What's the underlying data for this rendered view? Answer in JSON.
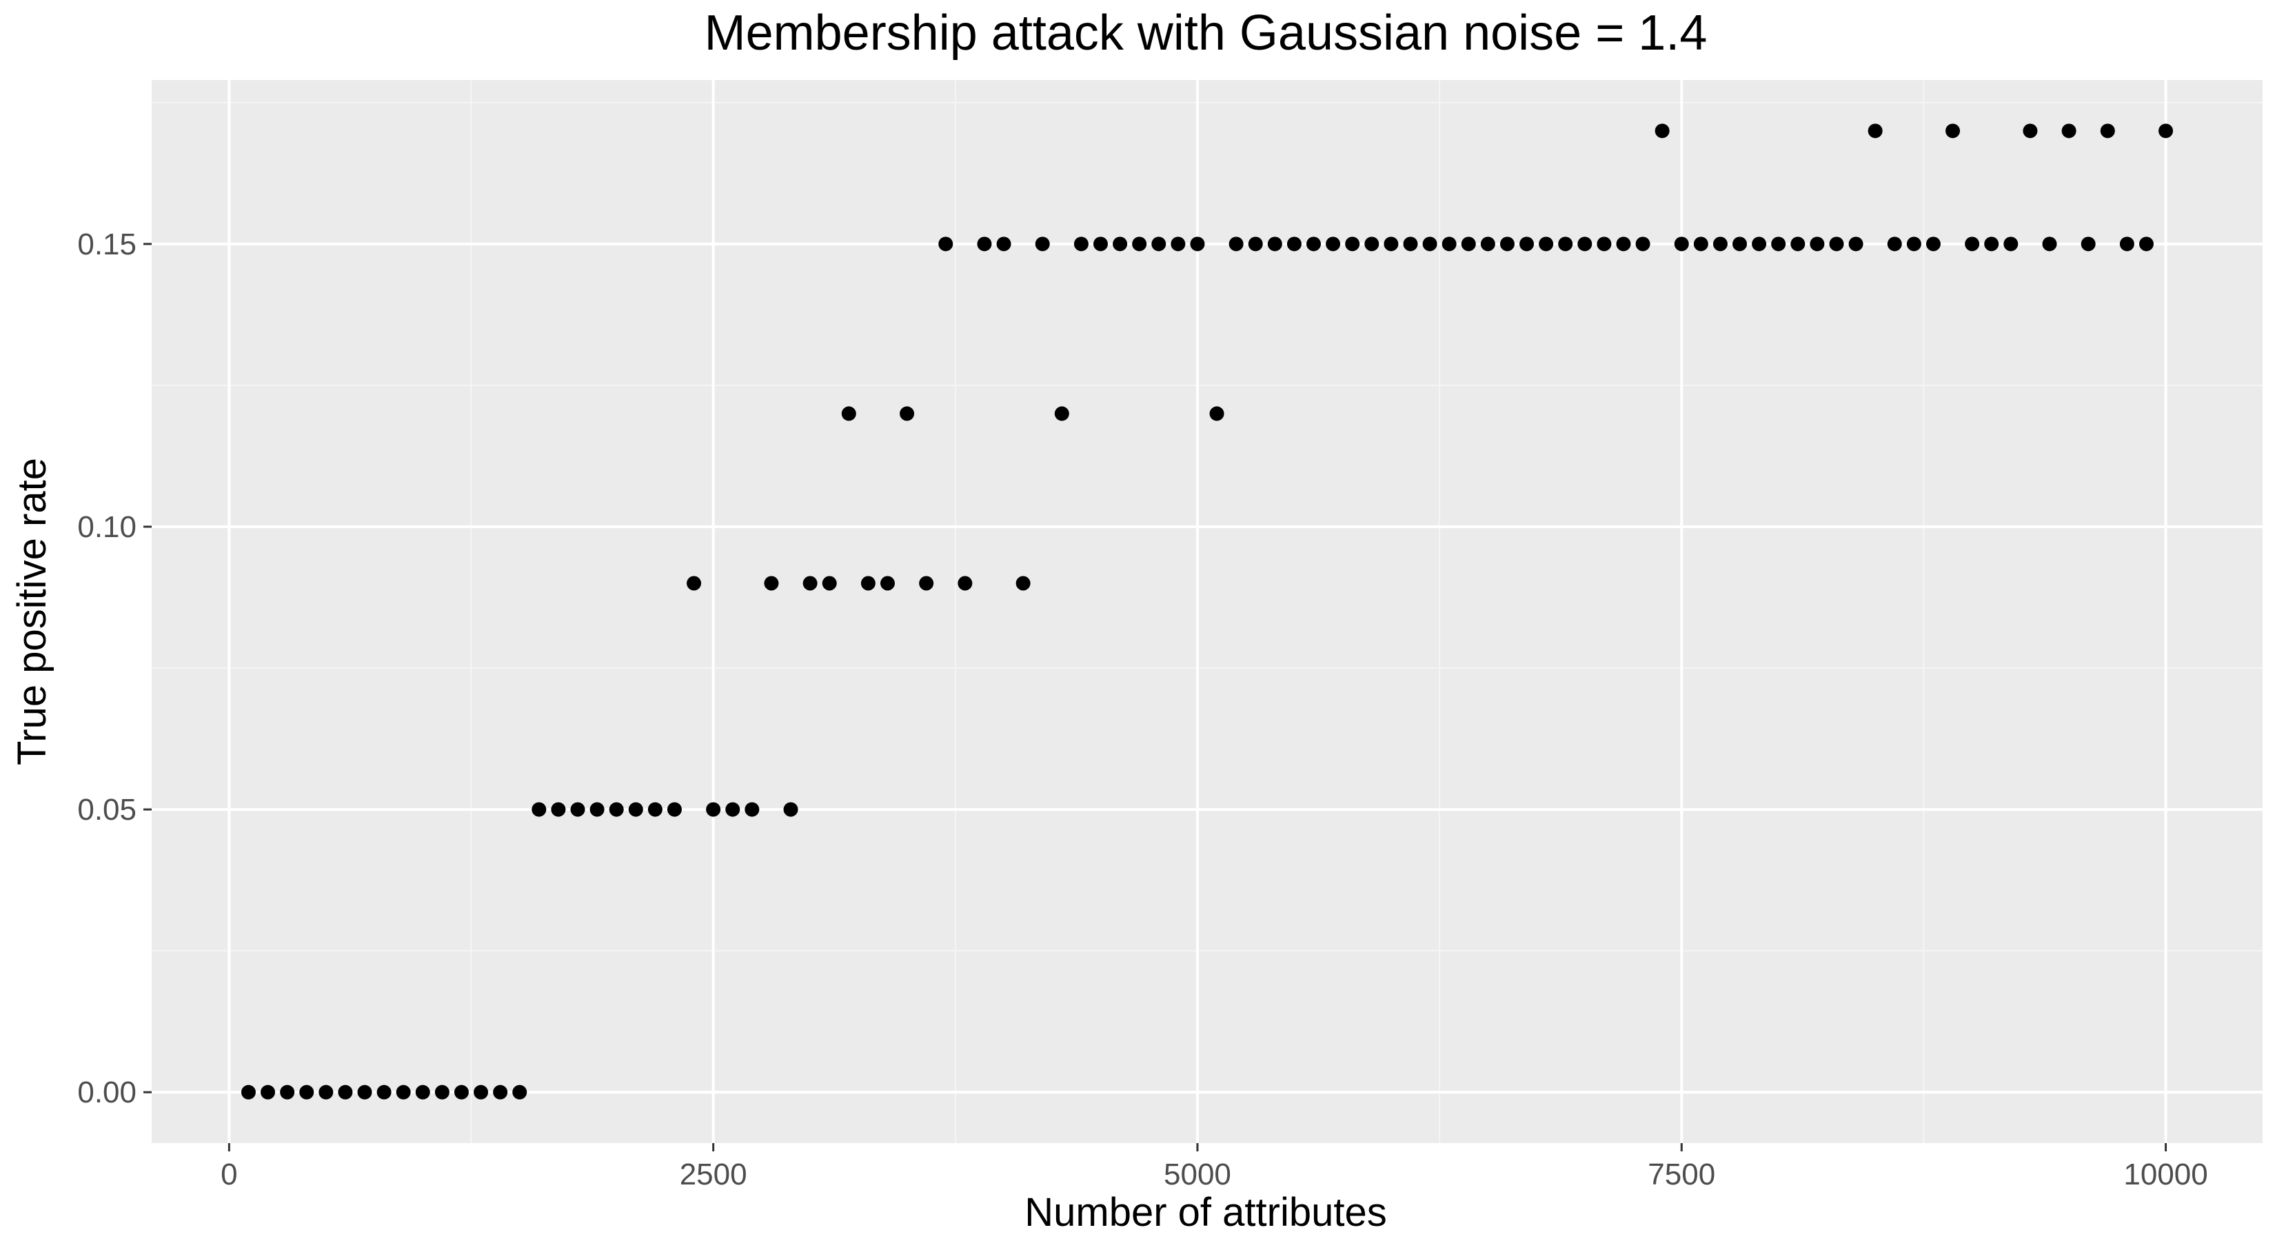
{
  "chart_data": {
    "type": "scatter",
    "title": "Membership attack with Gaussian noise = 1.4",
    "xlabel": "Number of attributes",
    "ylabel": "True positive rate",
    "xlim": [
      -400,
      10500
    ],
    "ylim": [
      -0.009,
      0.179
    ],
    "x_ticks": [
      0,
      2500,
      5000,
      7500,
      10000
    ],
    "x_tick_labels": [
      "0",
      "2500",
      "5000",
      "7500",
      "10000"
    ],
    "y_ticks": [
      0.0,
      0.05,
      0.1,
      0.15
    ],
    "y_tick_labels": [
      "0.00",
      "0.05",
      "0.10",
      "0.15"
    ],
    "grid": true,
    "legend": "none",
    "colors": {
      "panel_background": "#ebebeb",
      "grid_major": "#ffffff",
      "grid_minor": "#f5f5f5",
      "point": "#000000",
      "tick_label": "#4d4d4d",
      "tick_mark": "#333333"
    },
    "x": [
      100,
      200,
      300,
      400,
      500,
      600,
      700,
      800,
      900,
      1000,
      1100,
      1200,
      1300,
      1400,
      1500,
      1600,
      1700,
      1800,
      1900,
      2000,
      2100,
      2200,
      2300,
      2400,
      2500,
      2600,
      2700,
      2800,
      2900,
      3000,
      3100,
      3200,
      3300,
      3400,
      3500,
      3600,
      3700,
      3800,
      3900,
      4000,
      4100,
      4200,
      4300,
      4400,
      4500,
      4600,
      4700,
      4800,
      4900,
      5000,
      5100,
      5200,
      5300,
      5400,
      5500,
      5600,
      5700,
      5800,
      5900,
      6000,
      6100,
      6200,
      6300,
      6400,
      6500,
      6600,
      6700,
      6800,
      6900,
      7000,
      7100,
      7200,
      7300,
      7400,
      7500,
      7600,
      7700,
      7800,
      7900,
      8000,
      8100,
      8200,
      8300,
      8400,
      8500,
      8600,
      8700,
      8800,
      8900,
      9000,
      9100,
      9200,
      9300,
      9400,
      9500,
      9600,
      9700,
      9800,
      9900,
      10000
    ],
    "y": [
      0.0,
      0.0,
      0.0,
      0.0,
      0.0,
      0.0,
      0.0,
      0.0,
      0.0,
      0.0,
      0.0,
      0.0,
      0.0,
      0.0,
      0.0,
      0.05,
      0.05,
      0.05,
      0.05,
      0.05,
      0.05,
      0.05,
      0.05,
      0.09,
      0.05,
      0.05,
      0.05,
      0.09,
      0.05,
      0.09,
      0.09,
      0.12,
      0.09,
      0.09,
      0.12,
      0.09,
      0.15,
      0.09,
      0.15,
      0.15,
      0.09,
      0.15,
      0.12,
      0.15,
      0.15,
      0.15,
      0.15,
      0.15,
      0.15,
      0.15,
      0.12,
      0.15,
      0.15,
      0.15,
      0.15,
      0.15,
      0.15,
      0.15,
      0.15,
      0.15,
      0.15,
      0.15,
      0.15,
      0.15,
      0.15,
      0.15,
      0.15,
      0.15,
      0.15,
      0.15,
      0.15,
      0.15,
      0.15,
      0.17,
      0.15,
      0.15,
      0.15,
      0.15,
      0.15,
      0.15,
      0.15,
      0.15,
      0.15,
      0.15,
      0.17,
      0.15,
      0.15,
      0.15,
      0.17,
      0.15,
      0.15,
      0.15,
      0.17,
      0.15,
      0.17,
      0.15,
      0.17,
      0.15,
      0.15,
      0.17
    ]
  }
}
